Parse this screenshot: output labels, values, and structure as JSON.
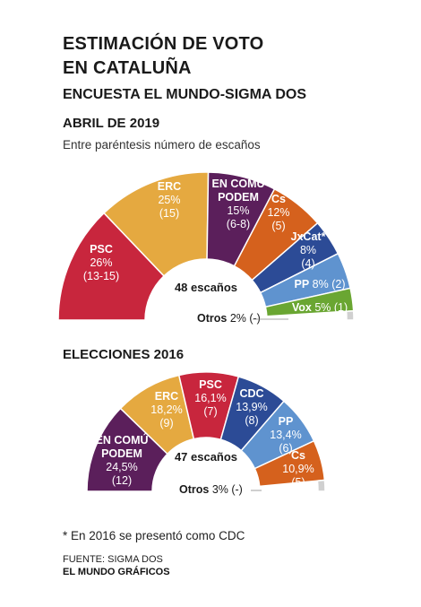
{
  "header": {
    "title_line1": "ESTIMACIÓN DE VOTO",
    "title_line2": "EN CATALUÑA",
    "subtitle": "ENCUESTA EL MUNDO-SIGMA DOS"
  },
  "section1": {
    "label": "ABRIL DE 2019",
    "note": "Entre paréntesis número de  escaños"
  },
  "section2": {
    "label": "ELECCIONES 2016"
  },
  "footer": {
    "footnote": "* En 2016 se presentó como CDC",
    "source": "FUENTE: SIGMA DOS",
    "credit": "EL MUNDO GRÁFICOS"
  },
  "colors": {
    "PSC": "#c8263d",
    "ERC": "#e5a940",
    "EN COMÚ PODEM": "#5b1f5b",
    "Cs": "#d5611d",
    "JxCat": "#2c4b96",
    "PP": "#5f93cf",
    "Vox": "#6aa632",
    "CDC": "#2c4b96",
    "Otros": "#d0d0d0"
  },
  "chart_data": [
    {
      "type": "pie",
      "subtype": "semicircle",
      "title": "ABRIL DE 2019",
      "center_label": "48 escaños",
      "slices": [
        {
          "party": "PSC",
          "lines": [
            "PSC"
          ],
          "pct": 26,
          "pct_label": "26%",
          "seats": "(13-15)"
        },
        {
          "party": "ERC",
          "lines": [
            "ERC"
          ],
          "pct": 25,
          "pct_label": "25%",
          "seats": "(15)"
        },
        {
          "party": "EN COMÚ PODEM",
          "lines": [
            "EN COMÚ",
            "PODEM"
          ],
          "pct": 15,
          "pct_label": "15%",
          "seats": "(6-8)"
        },
        {
          "party": "Cs",
          "lines": [
            "Cs"
          ],
          "pct": 12,
          "pct_label": "12%",
          "seats": "(5)"
        },
        {
          "party": "JxCat",
          "lines": [
            "JxCat*"
          ],
          "pct": 8,
          "pct_label": "8%",
          "seats": "(4)"
        },
        {
          "party": "PP",
          "lines": [
            "PP"
          ],
          "pct": 8,
          "pct_label": "8%",
          "seats": "(2)"
        },
        {
          "party": "Vox",
          "lines": [
            "Vox"
          ],
          "pct": 5,
          "pct_label": "5%",
          "seats": "(1)"
        },
        {
          "party": "Otros",
          "lines": [
            "Otros"
          ],
          "pct": 2,
          "pct_label": "2%",
          "seats": "(-)"
        }
      ]
    },
    {
      "type": "pie",
      "subtype": "semicircle",
      "title": "ELECCIONES 2016",
      "center_label": "47 escaños",
      "slices": [
        {
          "party": "EN COMÚ PODEM",
          "lines": [
            "EN COMÚ",
            "PODEM"
          ],
          "pct": 24.5,
          "pct_label": "24,5%",
          "seats": "(12)"
        },
        {
          "party": "ERC",
          "lines": [
            "ERC"
          ],
          "pct": 18.2,
          "pct_label": "18,2%",
          "seats": "(9)"
        },
        {
          "party": "PSC",
          "lines": [
            "PSC"
          ],
          "pct": 16.1,
          "pct_label": "16,1%",
          "seats": "(7)"
        },
        {
          "party": "CDC",
          "lines": [
            "CDC"
          ],
          "pct": 13.9,
          "pct_label": "13,9%",
          "seats": "(8)"
        },
        {
          "party": "PP",
          "lines": [
            "PP"
          ],
          "pct": 13.4,
          "pct_label": "13,4%",
          "seats": "(6)"
        },
        {
          "party": "Cs",
          "lines": [
            "Cs"
          ],
          "pct": 10.9,
          "pct_label": "10,9%",
          "seats": "(5)"
        },
        {
          "party": "Otros",
          "lines": [
            "Otros"
          ],
          "pct": 3,
          "pct_label": "3%",
          "seats": "(-)"
        }
      ]
    }
  ]
}
